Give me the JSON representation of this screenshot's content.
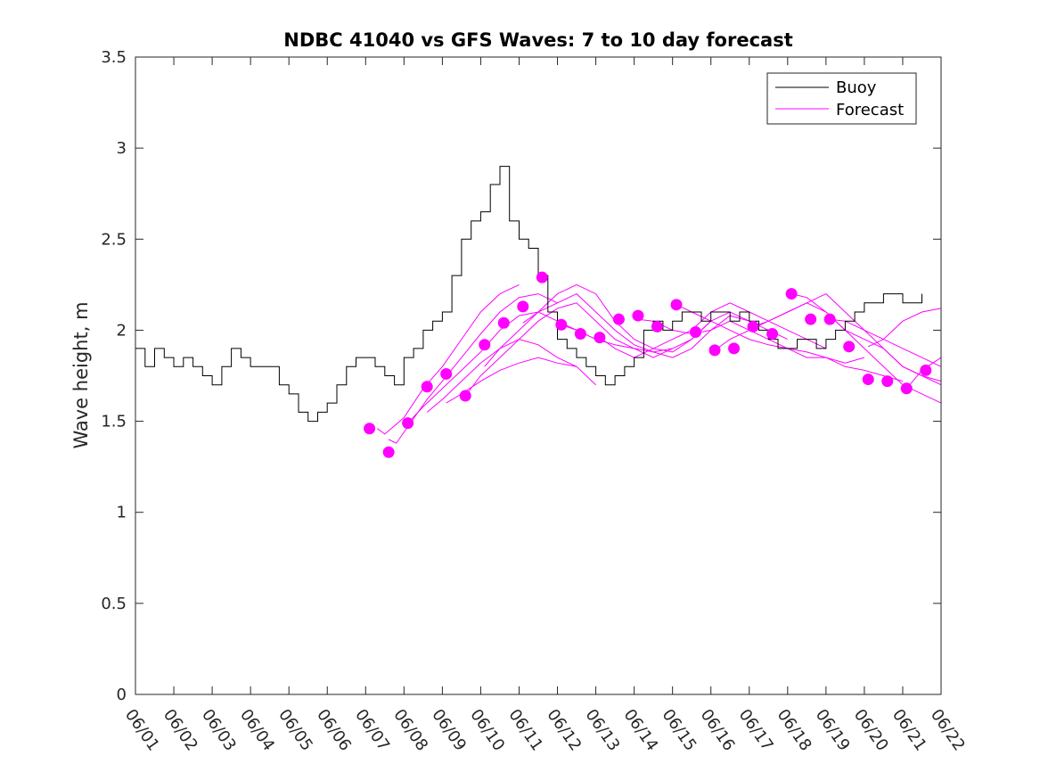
{
  "chart_data": {
    "type": "line",
    "title": "NDBC 41040 vs GFS Waves: 7 to 10 day forecast",
    "xlabel": "",
    "ylabel": "Wave height, m",
    "xlim": [
      0,
      21
    ],
    "ylim": [
      0,
      3.5
    ],
    "xticks": [
      0,
      1,
      2,
      3,
      4,
      5,
      6,
      7,
      8,
      9,
      10,
      11,
      12,
      13,
      14,
      15,
      16,
      17,
      18,
      19,
      20,
      21
    ],
    "xtick_labels": [
      "06/01",
      "06/02",
      "06/03",
      "06/04",
      "06/05",
      "06/06",
      "06/07",
      "06/08",
      "06/09",
      "06/10",
      "06/11",
      "06/12",
      "06/13",
      "06/14",
      "06/15",
      "06/16",
      "06/17",
      "06/18",
      "06/19",
      "06/20",
      "06/21",
      "06/22"
    ],
    "yticks": [
      0,
      0.5,
      1,
      1.5,
      2,
      2.5,
      3,
      3.5
    ],
    "ytick_labels": [
      "0",
      "0.5",
      "1",
      "1.5",
      "2",
      "2.5",
      "3",
      "3.5"
    ],
    "legend": {
      "placement": "top-right",
      "entries": [
        "Buoy",
        "Forecast"
      ]
    },
    "colors": {
      "buoy": "#000000",
      "forecast": "#ff00ff"
    },
    "buoy": {
      "name": "Buoy",
      "x": [
        0,
        0.25,
        0.5,
        0.75,
        1,
        1.25,
        1.5,
        1.75,
        2,
        2.25,
        2.5,
        2.75,
        3,
        3.25,
        3.5,
        3.75,
        4,
        4.25,
        4.5,
        4.75,
        5,
        5.25,
        5.5,
        5.75,
        6,
        6.25,
        6.5,
        6.75,
        7,
        7.25,
        7.5,
        7.75,
        8,
        8.25,
        8.5,
        8.75,
        9,
        9.25,
        9.5,
        9.75,
        10,
        10.25,
        10.5,
        10.75,
        11,
        11.25,
        11.5,
        11.75,
        12,
        12.25,
        12.5,
        12.75,
        13,
        13.25,
        13.5,
        13.75,
        14,
        14.25,
        14.5,
        14.75,
        15,
        15.25,
        15.5,
        15.75,
        16,
        16.25,
        16.5,
        16.75,
        17,
        17.25,
        17.5,
        17.75,
        18,
        18.25,
        18.5,
        18.75,
        19,
        19.25,
        19.5,
        19.75,
        20,
        20.25,
        20.5
      ],
      "values": [
        1.9,
        1.8,
        1.9,
        1.85,
        1.8,
        1.85,
        1.8,
        1.75,
        1.7,
        1.8,
        1.9,
        1.85,
        1.8,
        1.8,
        1.8,
        1.7,
        1.65,
        1.55,
        1.5,
        1.55,
        1.6,
        1.7,
        1.8,
        1.85,
        1.85,
        1.8,
        1.75,
        1.7,
        1.85,
        1.9,
        2.0,
        2.05,
        2.1,
        2.3,
        2.5,
        2.6,
        2.65,
        2.8,
        2.9,
        2.6,
        2.5,
        2.45,
        2.3,
        2.1,
        1.95,
        1.9,
        1.85,
        1.8,
        1.75,
        1.7,
        1.75,
        1.8,
        1.85,
        2.0,
        2.05,
        2.0,
        2.05,
        2.1,
        2.1,
        2.05,
        2.1,
        2.1,
        2.05,
        2.1,
        2.05,
        2.0,
        1.95,
        1.9,
        1.9,
        1.95,
        1.95,
        1.9,
        1.95,
        2.0,
        2.05,
        2.1,
        2.15,
        2.15,
        2.2,
        2.2,
        2.15,
        2.15,
        2.2
      ]
    },
    "forecast_lines": [
      {
        "x": [
          6.3,
          6.5,
          7,
          7.5,
          8,
          8.5,
          9,
          9.5,
          10
        ],
        "values": [
          1.46,
          1.43,
          1.52,
          1.68,
          1.8,
          1.95,
          2.1,
          2.2,
          2.25
        ]
      },
      {
        "x": [
          6.6,
          6.8,
          7.2,
          7.6,
          8,
          8.5,
          9,
          9.5,
          10,
          10.5,
          11
        ],
        "values": [
          1.4,
          1.38,
          1.5,
          1.62,
          1.72,
          1.85,
          1.98,
          2.1,
          2.18,
          2.2,
          2.15
        ]
      },
      {
        "x": [
          7.1,
          7.5,
          8,
          8.5,
          9,
          9.5,
          10,
          10.5,
          11,
          11.5
        ],
        "values": [
          1.49,
          1.58,
          1.68,
          1.78,
          1.88,
          2.0,
          2.08,
          2.1,
          2.05,
          2.0
        ]
      },
      {
        "x": [
          7.6,
          8,
          8.5,
          9,
          9.5,
          10,
          10.5,
          11,
          11.5,
          12
        ],
        "values": [
          1.55,
          1.62,
          1.72,
          1.82,
          1.9,
          1.95,
          1.92,
          1.85,
          1.8,
          1.7
        ]
      },
      {
        "x": [
          8.1,
          8.5,
          9,
          9.5,
          10,
          10.5,
          11,
          11.5
        ],
        "values": [
          1.6,
          1.65,
          1.72,
          1.78,
          1.82,
          1.85,
          1.82,
          1.8
        ]
      },
      {
        "x": [
          8.6,
          9,
          9.5,
          10,
          10.5,
          11,
          11.5,
          12,
          12.5,
          13,
          13.5,
          14
        ],
        "values": [
          1.64,
          1.75,
          1.85,
          1.95,
          2.05,
          2.12,
          2.15,
          2.05,
          1.95,
          1.9,
          1.85,
          1.9
        ]
      },
      {
        "x": [
          9.1,
          9.5,
          10,
          10.5,
          11,
          11.5,
          12,
          12.5,
          13,
          13.5,
          14,
          14.5,
          15
        ],
        "values": [
          1.8,
          1.9,
          2.0,
          2.1,
          2.2,
          2.25,
          2.2,
          2.05,
          1.95,
          1.9,
          1.88,
          1.95,
          2.05
        ]
      },
      {
        "x": [
          10.1,
          10.5,
          11,
          11.5,
          12,
          12.5,
          13,
          13.5,
          14,
          14.5,
          15,
          15.5,
          16
        ],
        "values": [
          2.04,
          2.1,
          2.15,
          2.2,
          2.1,
          2.0,
          1.92,
          1.88,
          1.85,
          1.9,
          2.0,
          2.08,
          2.05
        ]
      },
      {
        "x": [
          11.1,
          11.5,
          12,
          12.5,
          13,
          13.5,
          14,
          14.5,
          15,
          15.5,
          16,
          16.5,
          17
        ],
        "values": [
          2.03,
          2.0,
          1.95,
          1.92,
          1.9,
          1.88,
          1.9,
          1.95,
          2.05,
          2.1,
          2.05,
          2.0,
          1.95
        ]
      },
      {
        "x": [
          12.1,
          12.5,
          13,
          13.5,
          14,
          14.5,
          15,
          15.5,
          16,
          16.5,
          17,
          17.5,
          18
        ],
        "values": [
          1.96,
          1.9,
          1.85,
          1.9,
          1.95,
          2.0,
          2.1,
          2.15,
          2.1,
          2.05,
          2.0,
          1.95,
          1.9
        ]
      },
      {
        "x": [
          13.1,
          13.5,
          14,
          14.5,
          15,
          15.5,
          16,
          16.5,
          17,
          17.5,
          18,
          18.5,
          19
        ],
        "values": [
          2.06,
          2.05,
          2.0,
          1.98,
          2.0,
          2.05,
          2.0,
          1.95,
          1.9,
          1.85,
          1.85,
          1.82,
          1.85
        ]
      },
      {
        "x": [
          14.1,
          14.5,
          15,
          15.5,
          16,
          16.5,
          17,
          17.5,
          18,
          18.5,
          19,
          19.5,
          20
        ],
        "values": [
          2.14,
          2.1,
          2.05,
          2.0,
          1.95,
          1.92,
          1.9,
          1.88,
          1.85,
          1.8,
          1.78,
          1.75,
          1.72
        ]
      },
      {
        "x": [
          15.1,
          15.5,
          16,
          16.5,
          17,
          17.5,
          18,
          18.5,
          19,
          19.5,
          20,
          20.5,
          21
        ],
        "values": [
          1.89,
          1.95,
          2.0,
          2.05,
          2.1,
          2.15,
          2.1,
          2.0,
          1.9,
          1.8,
          1.7,
          1.65,
          1.6
        ]
      },
      {
        "x": [
          16.1,
          16.5,
          17,
          17.5,
          18,
          18.5,
          19,
          19.5,
          20,
          20.5,
          21
        ],
        "values": [
          2.02,
          2.05,
          2.1,
          2.15,
          2.2,
          2.1,
          2.0,
          1.9,
          1.8,
          1.75,
          1.7
        ]
      },
      {
        "x": [
          17.1,
          17.5,
          18,
          18.5,
          19,
          19.5,
          20,
          20.5,
          21
        ],
        "values": [
          2.2,
          2.18,
          2.1,
          2.0,
          1.95,
          1.9,
          1.8,
          1.75,
          1.72
        ]
      },
      {
        "x": [
          18.1,
          18.5,
          19,
          19.5,
          20,
          20.5,
          21
        ],
        "values": [
          2.06,
          2.05,
          2.0,
          1.95,
          1.9,
          1.85,
          1.8
        ]
      },
      {
        "x": [
          19.1,
          19.5,
          20,
          20.5,
          21
        ],
        "values": [
          1.91,
          1.95,
          2.05,
          2.1,
          2.12
        ]
      },
      {
        "x": [
          20.1,
          20.5,
          21
        ],
        "values": [
          1.68,
          1.78,
          1.85
        ]
      }
    ],
    "forecast_points": {
      "x": [
        6.1,
        6.6,
        7.1,
        7.6,
        8.1,
        8.6,
        9.1,
        9.6,
        10.1,
        10.6,
        11.1,
        11.6,
        12.1,
        12.6,
        13.1,
        13.6,
        14.1,
        14.6,
        15.1,
        15.6,
        16.1,
        16.6,
        17.1,
        17.6,
        18.1,
        18.6,
        19.1,
        19.6,
        20.1,
        20.6
      ],
      "values": [
        1.46,
        1.33,
        1.49,
        1.69,
        1.76,
        1.64,
        1.92,
        2.04,
        2.13,
        2.29,
        2.03,
        1.98,
        1.96,
        2.06,
        2.08,
        2.02,
        2.14,
        1.99,
        1.89,
        1.9,
        2.02,
        1.98,
        2.2,
        2.06,
        2.06,
        1.91,
        1.73,
        1.72,
        1.68,
        1.78
      ]
    }
  }
}
